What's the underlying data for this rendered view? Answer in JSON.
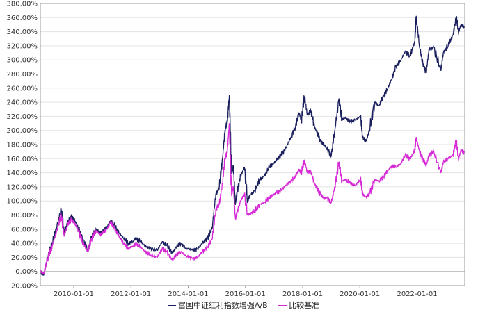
{
  "chart_data": {
    "type": "line",
    "title": "",
    "xlabel": "",
    "ylabel": "",
    "ylim": [
      -20,
      380
    ],
    "xlim": [
      "2008-11-01",
      "2023-09-01"
    ],
    "y_ticks": [
      "-20.00%",
      "0.00%",
      "20.00%",
      "40.00%",
      "60.00%",
      "80.00%",
      "100.00%",
      "120.00%",
      "140.00%",
      "160.00%",
      "180.00%",
      "200.00%",
      "220.00%",
      "240.00%",
      "260.00%",
      "280.00%",
      "300.00%",
      "320.00%",
      "340.00%",
      "360.00%",
      "380.00%"
    ],
    "y_tick_values": [
      -20,
      0,
      20,
      40,
      60,
      80,
      100,
      120,
      140,
      160,
      180,
      200,
      220,
      240,
      260,
      280,
      300,
      320,
      340,
      360,
      380
    ],
    "x_ticks": [
      "2010-01-01",
      "2012-01-01",
      "2014-01-01",
      "2016-01-01",
      "2018-01-01",
      "2020-01-01",
      "2022-01-01"
    ],
    "grid": "horizontal",
    "legend_position": "bottom",
    "series": [
      {
        "name": "富国中证红利指数增强A/B",
        "color": "#1a1f5e",
        "points": [
          [
            "2008-11-01",
            0
          ],
          [
            "2008-12-15",
            -5
          ],
          [
            "2009-02-01",
            20
          ],
          [
            "2009-04-01",
            40
          ],
          [
            "2009-06-01",
            65
          ],
          [
            "2009-07-25",
            88
          ],
          [
            "2009-09-01",
            55
          ],
          [
            "2009-10-15",
            70
          ],
          [
            "2009-12-01",
            78
          ],
          [
            "2010-01-15",
            72
          ],
          [
            "2010-03-01",
            62
          ],
          [
            "2010-05-01",
            45
          ],
          [
            "2010-07-01",
            30
          ],
          [
            "2010-08-15",
            50
          ],
          [
            "2010-10-15",
            60
          ],
          [
            "2010-12-01",
            55
          ],
          [
            "2011-01-15",
            58
          ],
          [
            "2011-03-01",
            62
          ],
          [
            "2011-04-15",
            72
          ],
          [
            "2011-06-01",
            66
          ],
          [
            "2011-08-01",
            55
          ],
          [
            "2011-10-01",
            47
          ],
          [
            "2011-12-01",
            40
          ],
          [
            "2012-02-01",
            43
          ],
          [
            "2012-03-01",
            47
          ],
          [
            "2012-05-01",
            43
          ],
          [
            "2012-07-01",
            36
          ],
          [
            "2012-09-01",
            33
          ],
          [
            "2012-12-01",
            30
          ],
          [
            "2013-02-01",
            42
          ],
          [
            "2013-04-01",
            37
          ],
          [
            "2013-06-15",
            26
          ],
          [
            "2013-08-01",
            35
          ],
          [
            "2013-10-01",
            40
          ],
          [
            "2013-12-01",
            33
          ],
          [
            "2014-03-01",
            30
          ],
          [
            "2014-05-01",
            32
          ],
          [
            "2014-07-01",
            40
          ],
          [
            "2014-09-01",
            47
          ],
          [
            "2014-11-01",
            60
          ],
          [
            "2014-12-20",
            110
          ],
          [
            "2015-02-01",
            118
          ],
          [
            "2015-03-15",
            160
          ],
          [
            "2015-04-15",
            200
          ],
          [
            "2015-05-15",
            212
          ],
          [
            "2015-06-10",
            250
          ],
          [
            "2015-07-08",
            140
          ],
          [
            "2015-08-01",
            150
          ],
          [
            "2015-08-26",
            95
          ],
          [
            "2015-09-20",
            115
          ],
          [
            "2015-11-01",
            135
          ],
          [
            "2015-12-20",
            148
          ],
          [
            "2016-01-29",
            100
          ],
          [
            "2016-03-01",
            108
          ],
          [
            "2016-05-01",
            115
          ],
          [
            "2016-07-01",
            130
          ],
          [
            "2016-09-01",
            136
          ],
          [
            "2016-11-01",
            148
          ],
          [
            "2016-12-15",
            152
          ],
          [
            "2017-02-01",
            158
          ],
          [
            "2017-04-01",
            165
          ],
          [
            "2017-06-01",
            175
          ],
          [
            "2017-08-01",
            190
          ],
          [
            "2017-10-01",
            205
          ],
          [
            "2017-11-15",
            225
          ],
          [
            "2017-12-15",
            215
          ],
          [
            "2018-01-25",
            248
          ],
          [
            "2018-03-01",
            222
          ],
          [
            "2018-04-15",
            228
          ],
          [
            "2018-06-01",
            205
          ],
          [
            "2018-07-01",
            198
          ],
          [
            "2018-08-15",
            185
          ],
          [
            "2018-10-01",
            180
          ],
          [
            "2018-11-01",
            175
          ],
          [
            "2019-01-03",
            165
          ],
          [
            "2019-02-15",
            200
          ],
          [
            "2019-04-10",
            245
          ],
          [
            "2019-05-15",
            215
          ],
          [
            "2019-07-01",
            218
          ],
          [
            "2019-09-01",
            212
          ],
          [
            "2019-11-01",
            215
          ],
          [
            "2020-01-10",
            220
          ],
          [
            "2020-02-05",
            190
          ],
          [
            "2020-03-23",
            185
          ],
          [
            "2020-05-01",
            200
          ],
          [
            "2020-07-08",
            240
          ],
          [
            "2020-09-01",
            235
          ],
          [
            "2020-11-01",
            250
          ],
          [
            "2020-12-15",
            258
          ],
          [
            "2021-02-18",
            275
          ],
          [
            "2021-04-01",
            290
          ],
          [
            "2021-06-01",
            298
          ],
          [
            "2021-08-01",
            312
          ],
          [
            "2021-10-01",
            305
          ],
          [
            "2021-11-15",
            320
          ],
          [
            "2021-12-01",
            325
          ],
          [
            "2021-12-20",
            362
          ],
          [
            "2022-02-01",
            318
          ],
          [
            "2022-03-15",
            295
          ],
          [
            "2022-04-27",
            282
          ],
          [
            "2022-06-01",
            315
          ],
          [
            "2022-08-01",
            318
          ],
          [
            "2022-10-31",
            285
          ],
          [
            "2022-12-01",
            310
          ],
          [
            "2023-02-01",
            320
          ],
          [
            "2023-04-01",
            335
          ],
          [
            "2023-05-15",
            360
          ],
          [
            "2023-06-15",
            340
          ],
          [
            "2023-07-15",
            350
          ],
          [
            "2023-09-01",
            345
          ]
        ]
      },
      {
        "name": "比较基准",
        "color": "#d62ad6",
        "points": [
          [
            "2008-11-01",
            0
          ],
          [
            "2008-12-15",
            -3
          ],
          [
            "2009-02-01",
            18
          ],
          [
            "2009-04-01",
            36
          ],
          [
            "2009-06-01",
            58
          ],
          [
            "2009-07-25",
            80
          ],
          [
            "2009-09-01",
            50
          ],
          [
            "2009-10-15",
            66
          ],
          [
            "2009-12-01",
            74
          ],
          [
            "2010-01-15",
            68
          ],
          [
            "2010-03-01",
            58
          ],
          [
            "2010-05-01",
            40
          ],
          [
            "2010-07-01",
            28
          ],
          [
            "2010-08-15",
            46
          ],
          [
            "2010-10-15",
            58
          ],
          [
            "2010-12-01",
            52
          ],
          [
            "2011-01-15",
            55
          ],
          [
            "2011-03-01",
            60
          ],
          [
            "2011-04-15",
            70
          ],
          [
            "2011-06-01",
            62
          ],
          [
            "2011-08-01",
            50
          ],
          [
            "2011-10-01",
            40
          ],
          [
            "2011-12-01",
            33
          ],
          [
            "2012-02-01",
            36
          ],
          [
            "2012-03-01",
            40
          ],
          [
            "2012-05-01",
            35
          ],
          [
            "2012-07-01",
            28
          ],
          [
            "2012-09-01",
            24
          ],
          [
            "2012-12-01",
            20
          ],
          [
            "2013-02-01",
            32
          ],
          [
            "2013-04-01",
            28
          ],
          [
            "2013-06-15",
            16
          ],
          [
            "2013-08-01",
            24
          ],
          [
            "2013-10-01",
            28
          ],
          [
            "2013-12-01",
            22
          ],
          [
            "2014-03-01",
            18
          ],
          [
            "2014-05-01",
            20
          ],
          [
            "2014-07-01",
            28
          ],
          [
            "2014-09-01",
            34
          ],
          [
            "2014-11-01",
            45
          ],
          [
            "2014-12-20",
            88
          ],
          [
            "2015-02-01",
            95
          ],
          [
            "2015-03-15",
            125
          ],
          [
            "2015-04-15",
            160
          ],
          [
            "2015-05-15",
            170
          ],
          [
            "2015-06-10",
            210
          ],
          [
            "2015-07-08",
            110
          ],
          [
            "2015-08-01",
            120
          ],
          [
            "2015-08-26",
            75
          ],
          [
            "2015-09-20",
            85
          ],
          [
            "2015-11-01",
            100
          ],
          [
            "2015-12-20",
            110
          ],
          [
            "2016-01-29",
            80
          ],
          [
            "2016-03-01",
            82
          ],
          [
            "2016-05-01",
            86
          ],
          [
            "2016-07-01",
            95
          ],
          [
            "2016-09-01",
            98
          ],
          [
            "2016-11-01",
            105
          ],
          [
            "2016-12-15",
            108
          ],
          [
            "2017-02-01",
            112
          ],
          [
            "2017-04-01",
            115
          ],
          [
            "2017-06-01",
            122
          ],
          [
            "2017-08-01",
            128
          ],
          [
            "2017-10-01",
            135
          ],
          [
            "2017-11-15",
            145
          ],
          [
            "2017-12-15",
            140
          ],
          [
            "2018-01-25",
            158
          ],
          [
            "2018-03-01",
            140
          ],
          [
            "2018-04-15",
            142
          ],
          [
            "2018-06-01",
            125
          ],
          [
            "2018-07-01",
            118
          ],
          [
            "2018-08-15",
            110
          ],
          [
            "2018-10-01",
            103
          ],
          [
            "2018-11-01",
            105
          ],
          [
            "2019-01-03",
            98
          ],
          [
            "2019-02-15",
            120
          ],
          [
            "2019-04-10",
            155
          ],
          [
            "2019-05-15",
            128
          ],
          [
            "2019-07-01",
            130
          ],
          [
            "2019-09-01",
            125
          ],
          [
            "2019-11-01",
            122
          ],
          [
            "2020-01-10",
            130
          ],
          [
            "2020-02-05",
            110
          ],
          [
            "2020-03-23",
            105
          ],
          [
            "2020-05-01",
            110
          ],
          [
            "2020-07-08",
            130
          ],
          [
            "2020-09-01",
            128
          ],
          [
            "2020-11-01",
            135
          ],
          [
            "2020-12-15",
            142
          ],
          [
            "2021-02-18",
            150
          ],
          [
            "2021-04-01",
            148
          ],
          [
            "2021-06-01",
            152
          ],
          [
            "2021-08-01",
            165
          ],
          [
            "2021-10-01",
            160
          ],
          [
            "2021-11-15",
            168
          ],
          [
            "2021-12-01",
            172
          ],
          [
            "2021-12-20",
            190
          ],
          [
            "2022-02-01",
            170
          ],
          [
            "2022-03-15",
            160
          ],
          [
            "2022-04-27",
            150
          ],
          [
            "2022-06-01",
            165
          ],
          [
            "2022-08-01",
            170
          ],
          [
            "2022-10-31",
            140
          ],
          [
            "2022-12-01",
            155
          ],
          [
            "2023-02-01",
            160
          ],
          [
            "2023-04-01",
            165
          ],
          [
            "2023-05-15",
            185
          ],
          [
            "2023-06-15",
            160
          ],
          [
            "2023-07-15",
            172
          ],
          [
            "2023-09-01",
            168
          ]
        ]
      }
    ]
  }
}
